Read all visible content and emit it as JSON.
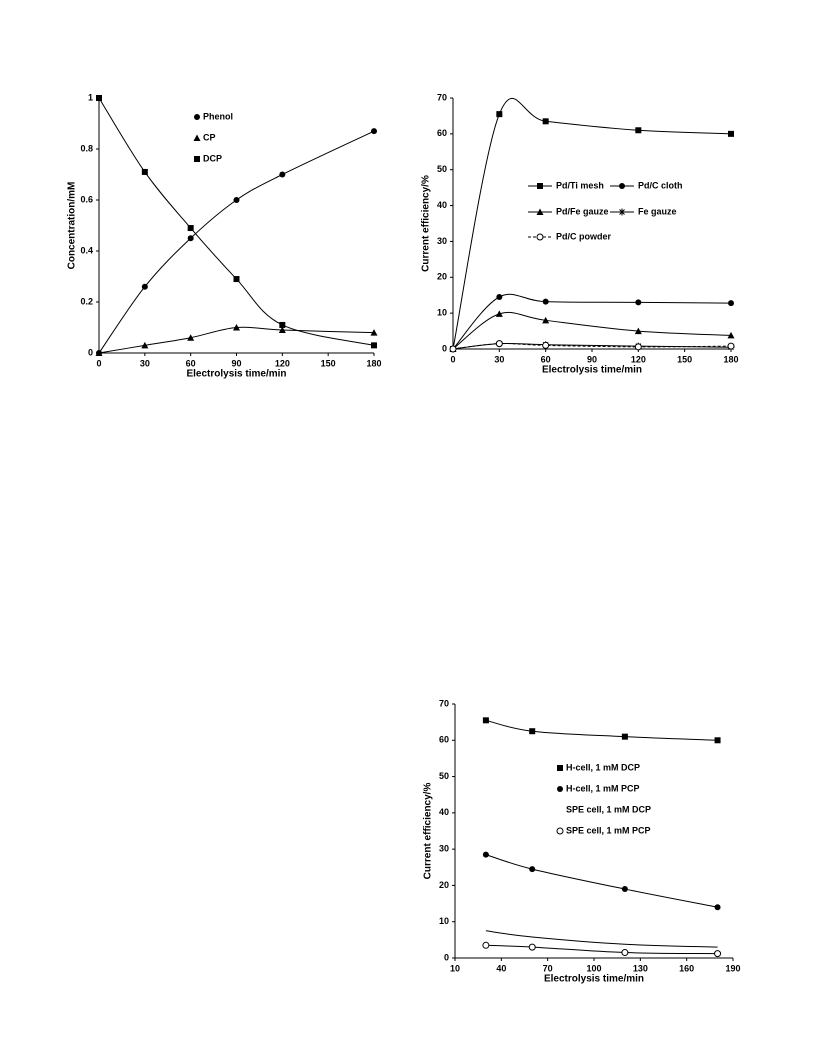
{
  "chart_data": [
    {
      "type": "line",
      "ylabel": "Concentration/mM",
      "xlabel": "Electrolysis time/min",
      "x": [
        0,
        30,
        60,
        90,
        120,
        180
      ],
      "xlim": [
        0,
        180
      ],
      "xticks": [
        0,
        30,
        60,
        90,
        120,
        150,
        180
      ],
      "ylim": [
        0,
        1
      ],
      "yticks": [
        0,
        0.2,
        0.4,
        0.6,
        0.8,
        1
      ],
      "series": [
        {
          "name": "Phenol",
          "color": "#000000",
          "marker": "circle",
          "values": [
            0,
            0.26,
            0.45,
            0.6,
            0.7,
            0.87
          ]
        },
        {
          "name": "CP",
          "color": "#000000",
          "marker": "triangle",
          "values": [
            0,
            0.03,
            0.06,
            0.1,
            0.09,
            0.08
          ]
        },
        {
          "name": "DCP",
          "color": "#000000",
          "marker": "square",
          "values": [
            1,
            0.71,
            0.49,
            0.29,
            0.11,
            0.03
          ]
        }
      ]
    },
    {
      "type": "line",
      "ylabel": "Current efficiency/%",
      "xlabel": "Electrolysis time/min",
      "x": [
        0,
        30,
        60,
        120,
        180
      ],
      "xlim": [
        0,
        180
      ],
      "xticks": [
        0,
        30,
        60,
        90,
        120,
        150,
        180
      ],
      "ylim": [
        0,
        70
      ],
      "yticks": [
        0,
        10,
        20,
        30,
        40,
        50,
        60,
        70
      ],
      "series": [
        {
          "name": "Pd/Ti mesh",
          "color": "#000000",
          "marker": "square",
          "values": [
            0,
            65.5,
            63.5,
            61,
            60
          ]
        },
        {
          "name": "Pd/C cloth",
          "color": "#000000",
          "marker": "circle",
          "values": [
            0,
            14.5,
            13.2,
            13,
            12.8
          ]
        },
        {
          "name": "Pd/Fe gauze",
          "color": "#000000",
          "marker": "triangle",
          "values": [
            0,
            9.8,
            8,
            5,
            3.8
          ]
        },
        {
          "name": "Fe gauze",
          "color": "#000000",
          "marker": "asterisk",
          "values": [
            0,
            1.5,
            1.2,
            0.8,
            0.5
          ]
        },
        {
          "name": "Pd/C powder",
          "color": "#000000",
          "marker": "open-circle",
          "dashed": true,
          "values": [
            0,
            1.5,
            1,
            0.6,
            0.8
          ]
        }
      ]
    },
    {
      "type": "line",
      "ylabel": "Current efficiency/%",
      "xlabel": "Electrolysis time/min",
      "x": [
        30,
        60,
        120,
        180
      ],
      "xlim": [
        10,
        190
      ],
      "xticks": [
        10,
        40,
        70,
        100,
        130,
        160,
        190
      ],
      "ylim": [
        0,
        70
      ],
      "yticks": [
        0,
        10,
        20,
        30,
        40,
        50,
        60,
        70
      ],
      "series": [
        {
          "name": "H-cell, 1 mM DCP",
          "color": "#000000",
          "marker": "square",
          "values": [
            65.5,
            62.5,
            61,
            60
          ]
        },
        {
          "name": "H-cell, 1 mM PCP",
          "color": "#000000",
          "marker": "circle",
          "values": [
            28.5,
            24.5,
            19,
            14
          ]
        },
        {
          "name": "SPE cell, 1 mM DCP",
          "color": "#000000",
          "marker": "none",
          "values": [
            7.5,
            5.8,
            3.8,
            3
          ]
        },
        {
          "name": "SPE cell, 1 mM PCP",
          "color": "#000000",
          "marker": "open-circle",
          "values": [
            3.5,
            3,
            1.5,
            1.2
          ]
        }
      ]
    }
  ]
}
